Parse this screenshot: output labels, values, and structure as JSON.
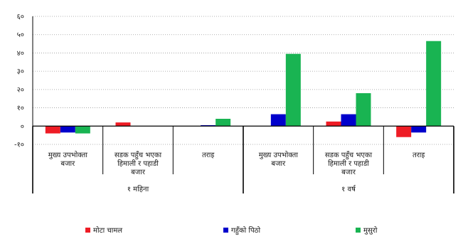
{
  "chart_data": {
    "type": "bar",
    "title": "",
    "xlabel": "",
    "ylabel": "",
    "ylim": [
      -10,
      60
    ],
    "yticks": [
      -10,
      0,
      10,
      20,
      30,
      40,
      50,
      60
    ],
    "ytick_labels": [
      "-१०",
      "०",
      "१०",
      "२०",
      "३०",
      "४०",
      "५०",
      "६०"
    ],
    "grid": true,
    "legend_position": "bottom",
    "categories": [
      [
        "मुख्य उपभोक्ता",
        "बजार"
      ],
      [
        "सडक पहुँच भएका",
        "हिमाली र पहाडी",
        "बजार"
      ],
      [
        "तराइ"
      ],
      [
        "मुख्य उपभोक्ता",
        "बजार"
      ],
      [
        "सडक पहुँच भएका",
        "हिमाली र पहाडी",
        "बजार"
      ],
      [
        "तराइ"
      ]
    ],
    "groups": [
      {
        "label": "१ महिना",
        "span": [
          0,
          2
        ]
      },
      {
        "label": "१ वर्ष",
        "span": [
          3,
          5
        ]
      }
    ],
    "series": [
      {
        "name": "मोटा चामल",
        "color": "#ee1c25",
        "values": [
          -4,
          2,
          0,
          0,
          2.5,
          -6
        ]
      },
      {
        "name": "गहुँको पिठो",
        "color": "#0000cc",
        "values": [
          -3.5,
          0,
          0.5,
          6.5,
          6.5,
          -3.5
        ]
      },
      {
        "name": "मुसुरो",
        "color": "#19b452",
        "values": [
          -4,
          0,
          4,
          39.5,
          18,
          46.5
        ]
      }
    ]
  }
}
